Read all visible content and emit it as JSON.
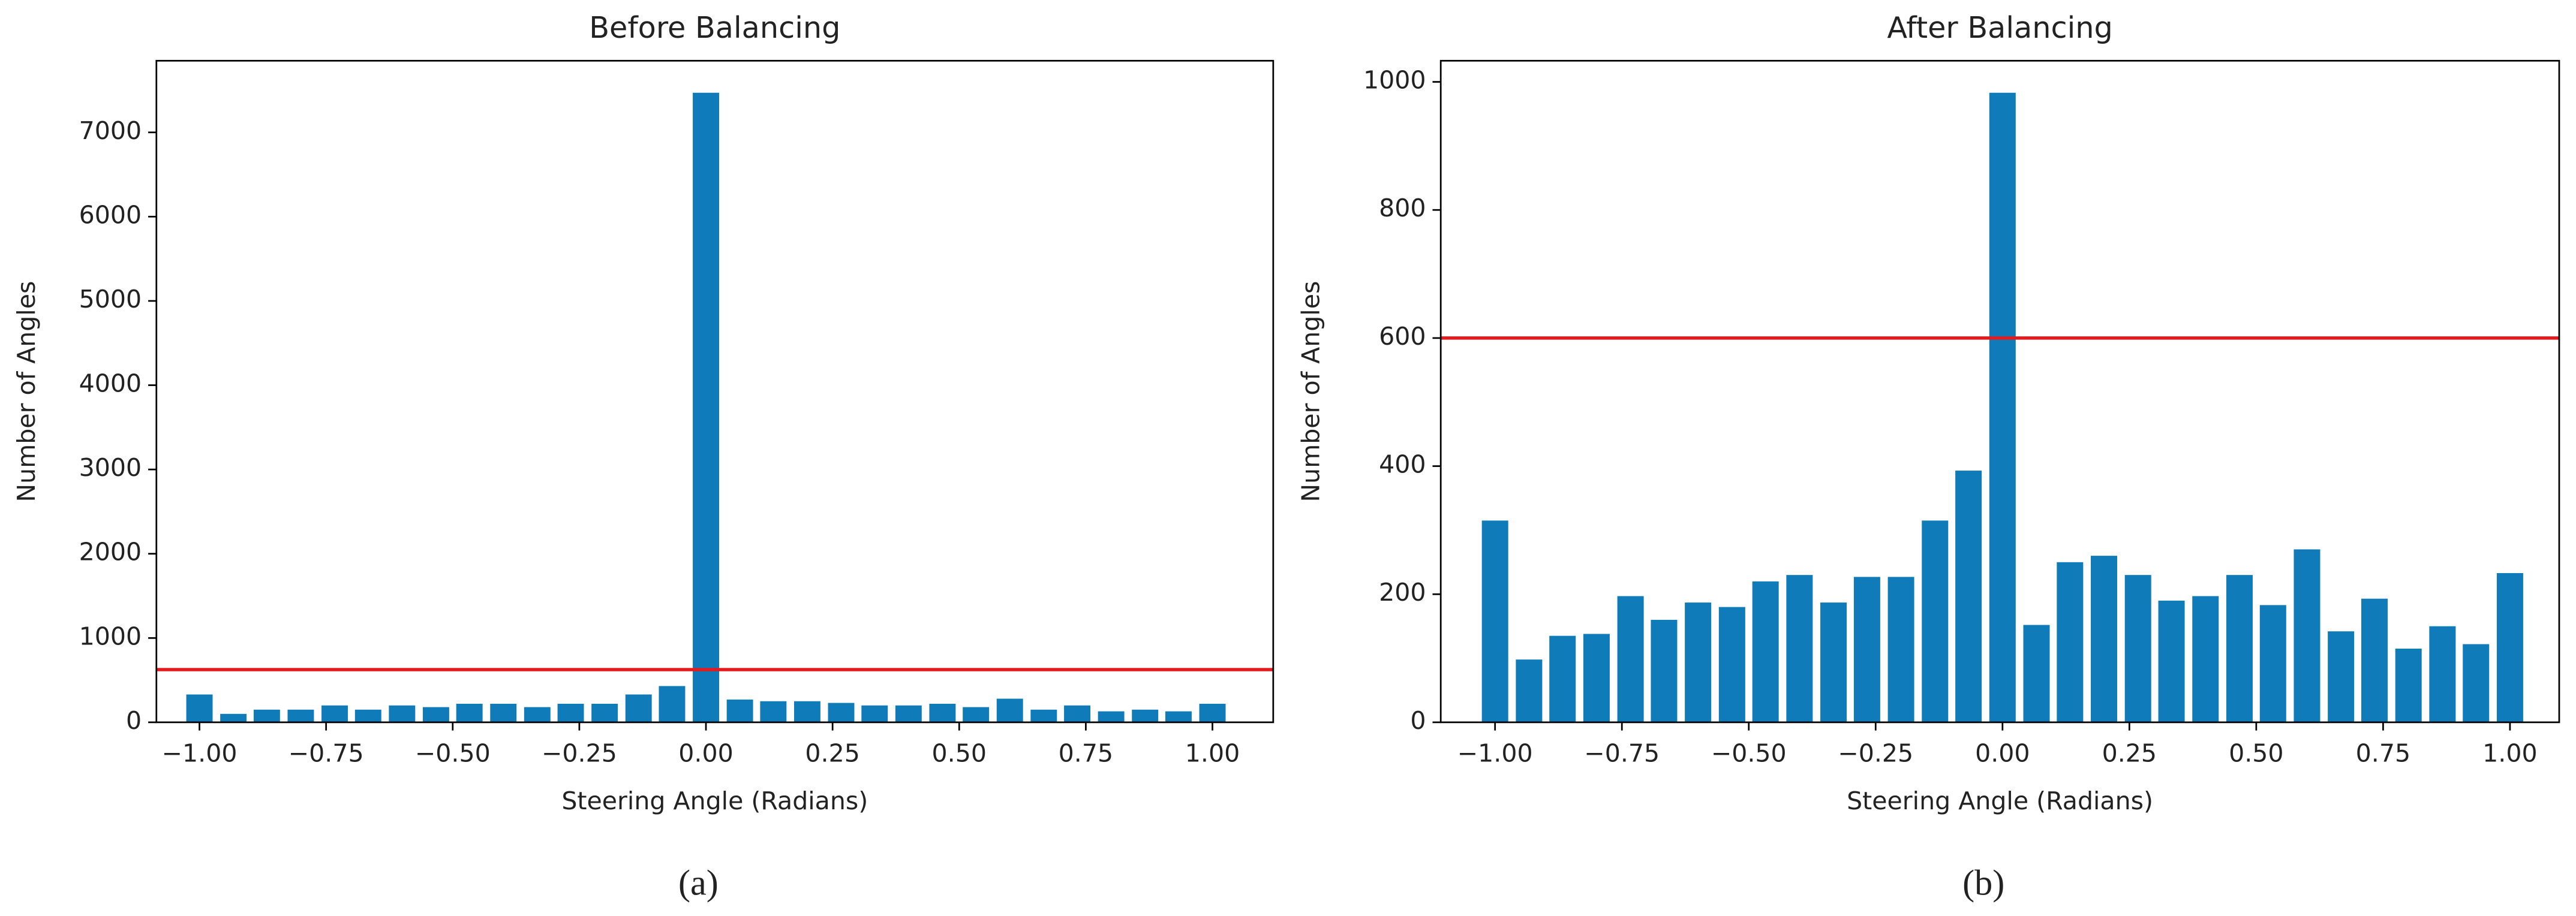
{
  "chart_data": [
    {
      "type": "bar",
      "title": "Before Balancing",
      "xlabel": "Steering Angle (Radians)",
      "ylabel": "Number of Angles",
      "caption": "(a)",
      "x": [
        -1,
        -0.933,
        -0.867,
        -0.8,
        -0.733,
        -0.667,
        -0.6,
        -0.533,
        -0.467,
        -0.4,
        -0.333,
        -0.267,
        -0.2,
        -0.133,
        -0.067,
        0,
        0.067,
        0.133,
        0.2,
        0.267,
        0.333,
        0.4,
        0.467,
        0.533,
        0.6,
        0.667,
        0.733,
        0.8,
        0.867,
        0.933,
        1
      ],
      "values": [
        330,
        100,
        150,
        150,
        200,
        150,
        200,
        180,
        220,
        220,
        180,
        220,
        220,
        330,
        430,
        7470,
        270,
        250,
        250,
        230,
        200,
        200,
        220,
        180,
        280,
        150,
        200,
        130,
        150,
        130,
        220
      ],
      "color": "#0f7bb8",
      "threshold": {
        "value": 625,
        "color": "#e41a1c"
      },
      "xlim": [
        -1.085,
        1.12
      ],
      "ylim": [
        0,
        7850
      ],
      "xticks": [
        {
          "value": -1,
          "label": "−1.00"
        },
        {
          "value": -0.75,
          "label": "−0.75"
        },
        {
          "value": -0.5,
          "label": "−0.50"
        },
        {
          "value": -0.25,
          "label": "−0.25"
        },
        {
          "value": 0,
          "label": "0.00"
        },
        {
          "value": 0.25,
          "label": "0.25"
        },
        {
          "value": 0.5,
          "label": "0.50"
        },
        {
          "value": 0.75,
          "label": "0.75"
        },
        {
          "value": 1,
          "label": "1.00"
        }
      ],
      "yticks": [
        0,
        1000,
        2000,
        3000,
        4000,
        5000,
        6000,
        7000
      ]
    },
    {
      "type": "bar",
      "title": "After Balancing",
      "xlabel": "Steering Angle (Radians)",
      "ylabel": "Number of Angles",
      "caption": "(b)",
      "x": [
        -1,
        -0.933,
        -0.867,
        -0.8,
        -0.733,
        -0.667,
        -0.6,
        -0.533,
        -0.467,
        -0.4,
        -0.333,
        -0.267,
        -0.2,
        -0.133,
        -0.067,
        0,
        0.067,
        0.133,
        0.2,
        0.267,
        0.333,
        0.4,
        0.467,
        0.533,
        0.6,
        0.667,
        0.733,
        0.8,
        0.867,
        0.933,
        1
      ],
      "values": [
        315,
        98,
        135,
        138,
        197,
        160,
        187,
        180,
        220,
        230,
        187,
        227,
        227,
        315,
        393,
        983,
        152,
        250,
        260,
        230,
        190,
        197,
        230,
        183,
        270,
        142,
        193,
        115,
        150,
        122,
        233
      ],
      "color": "#0f7bb8",
      "threshold": {
        "value": 600,
        "color": "#e41a1c"
      },
      "xlim": [
        -1.107,
        1.097
      ],
      "ylim": [
        0,
        1033
      ],
      "xticks": [
        {
          "value": -1,
          "label": "−1.00"
        },
        {
          "value": -0.75,
          "label": "−0.75"
        },
        {
          "value": -0.5,
          "label": "−0.50"
        },
        {
          "value": -0.25,
          "label": "−0.25"
        },
        {
          "value": 0,
          "label": "0.00"
        },
        {
          "value": 0.25,
          "label": "0.25"
        },
        {
          "value": 0.5,
          "label": "0.50"
        },
        {
          "value": 0.75,
          "label": "0.75"
        },
        {
          "value": 1,
          "label": "1.00"
        }
      ],
      "yticks": [
        0,
        200,
        400,
        600,
        800,
        1000
      ]
    }
  ]
}
